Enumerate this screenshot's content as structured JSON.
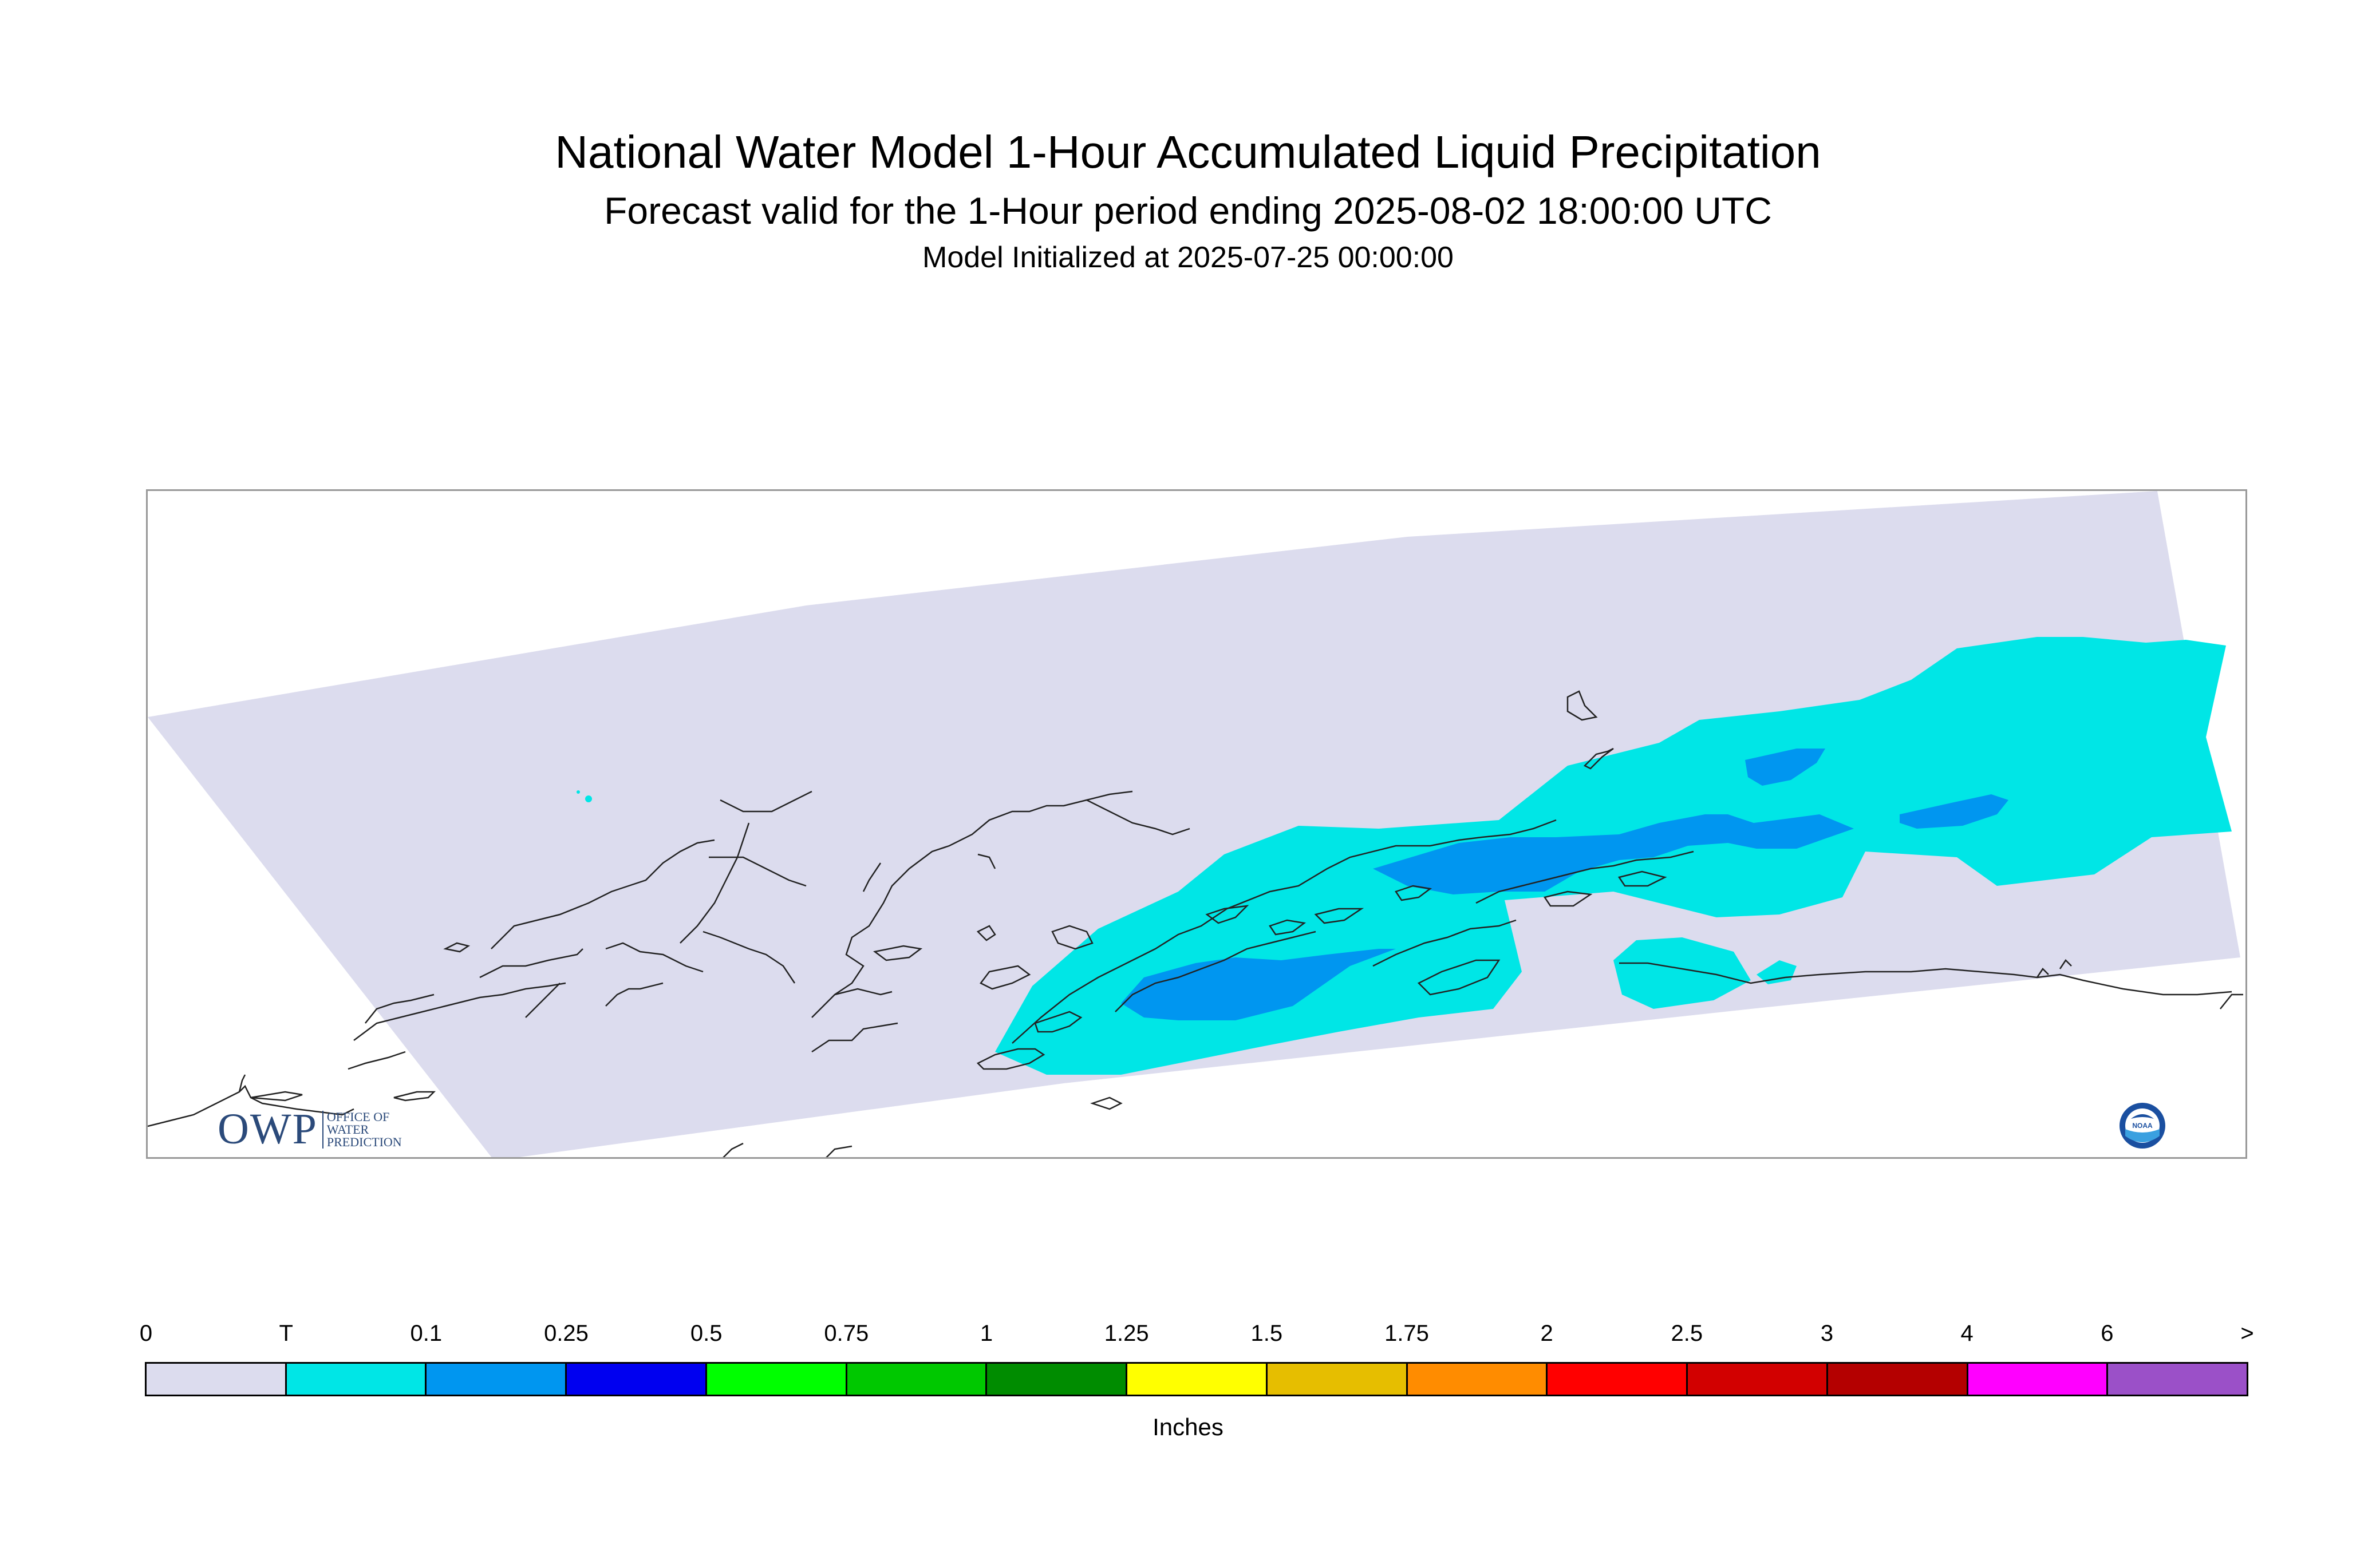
{
  "title": "National Water Model 1-Hour Accumulated Liquid Precipitation",
  "subtitle": "Forecast valid for the 1-Hour period ending 2025-08-02 18:00:00 UTC",
  "init_line": "Model Initialized at 2025-07-25 00:00:00",
  "legend": {
    "units": "Inches",
    "ticks": [
      "0",
      "T",
      "0.1",
      "0.25",
      "0.5",
      "0.75",
      "1",
      "1.25",
      "1.5",
      "1.75",
      "2",
      "2.5",
      "3",
      "4",
      "6",
      ">"
    ],
    "colors": [
      "#dcdcee",
      "#00e6e6",
      "#0096f0",
      "#0000f0",
      "#00ff00",
      "#00c800",
      "#008c00",
      "#ffff00",
      "#e6be00",
      "#ff8c00",
      "#ff0000",
      "#d20000",
      "#b40000",
      "#ff00ff",
      "#9b50c8"
    ]
  },
  "map": {
    "domain_fill": "#dcdcee",
    "region": "Alaska / Gulf of Alaska coastline",
    "precip_light_color": "#00e6e6",
    "precip_moderate_color": "#0096f0"
  },
  "logos": {
    "owp": {
      "letters": "OWP",
      "line1": "OFFICE OF",
      "line2": "WATER",
      "line3": "PREDICTION"
    },
    "noaa": {
      "text": "NOAA"
    }
  }
}
